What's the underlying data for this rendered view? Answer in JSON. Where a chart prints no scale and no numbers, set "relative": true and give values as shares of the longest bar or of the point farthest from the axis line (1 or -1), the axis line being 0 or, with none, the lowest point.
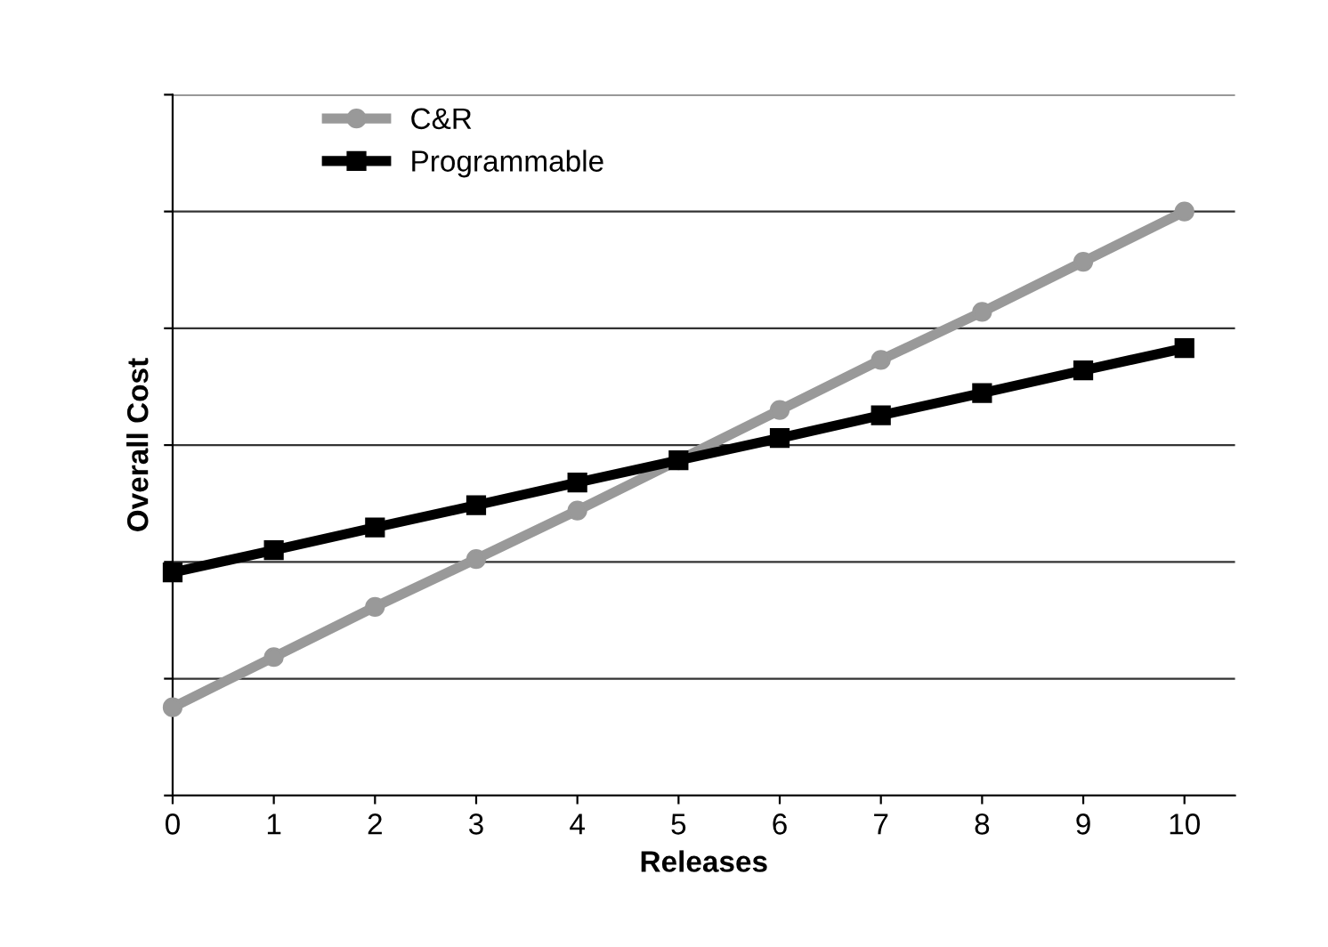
{
  "chart_data": {
    "type": "line",
    "xlabel": "Releases",
    "ylabel": "Overall Cost",
    "relative": true,
    "x": [
      0,
      1,
      2,
      3,
      4,
      5,
      6,
      7,
      8,
      9,
      10
    ],
    "xlim": [
      0,
      10.5
    ],
    "xticks": [
      0,
      1,
      2,
      3,
      4,
      5,
      6,
      7,
      8,
      9,
      10
    ],
    "series": [
      {
        "name": "C&R",
        "color": "#999999",
        "marker": "circle",
        "values": [
          0.151,
          0.237,
          0.323,
          0.405,
          0.488,
          0.574,
          0.66,
          0.746,
          0.828,
          0.914,
          1
        ]
      },
      {
        "name": "Programmable",
        "color": "#000000",
        "marker": "square",
        "values": [
          0.382,
          0.42,
          0.459,
          0.497,
          0.536,
          0.574,
          0.612,
          0.651,
          0.689,
          0.728,
          0.766
        ]
      }
    ],
    "grid": "y",
    "legend": "top left",
    "tick_labels": "x",
    "line_style": "solid"
  }
}
